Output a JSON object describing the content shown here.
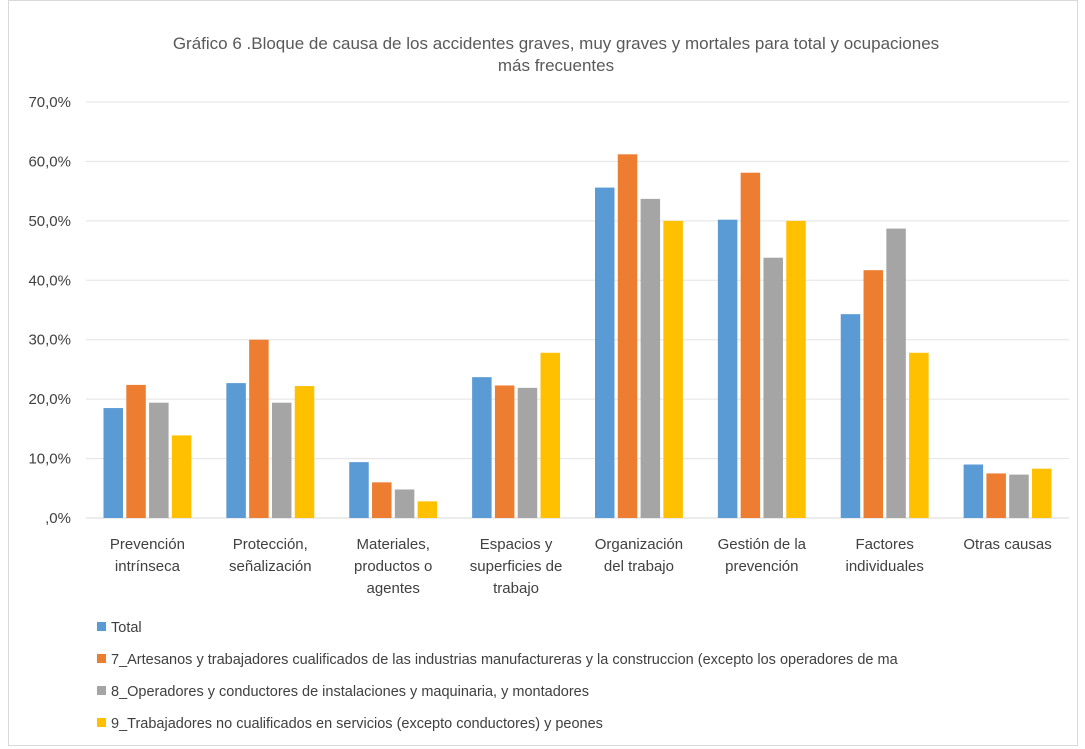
{
  "chart_data": {
    "type": "bar",
    "title_lines": [
      "Gráfico 6 .Bloque de causa de los accidentes graves, muy graves y mortales para total y ocupaciones",
      "más frecuentes"
    ],
    "categories": [
      [
        "Prevención",
        "intrínseca"
      ],
      [
        "Protección,",
        "señalización"
      ],
      [
        "Materiales,",
        "productos o",
        "agentes"
      ],
      [
        "Espacios y",
        "superficies de",
        "trabajo"
      ],
      [
        "Organización",
        "del trabajo"
      ],
      [
        "Gestión de la",
        "prevención"
      ],
      [
        "Factores",
        "individuales"
      ],
      [
        "Otras causas"
      ]
    ],
    "ylim": [
      0,
      70
    ],
    "yticks": [
      0,
      10,
      20,
      30,
      40,
      50,
      60,
      70
    ],
    "ytick_labels": [
      ",0%",
      "10,0%",
      "20,0%",
      "30,0%",
      "40,0%",
      "50,0%",
      "60,0%",
      "70,0%"
    ],
    "grid": true,
    "legend_position": "bottom",
    "series": [
      {
        "name": "Total",
        "color": "#5b9bd5",
        "values": [
          18.5,
          22.7,
          9.4,
          23.7,
          55.6,
          50.2,
          34.3,
          9.0
        ]
      },
      {
        "name": "7_Artesanos y trabajadores cualificados de las industrias manufactureras y la construccion (excepto los operadores de ma",
        "color": "#ed7d31",
        "values": [
          22.4,
          30.0,
          6.0,
          22.3,
          61.2,
          58.1,
          41.7,
          7.5
        ]
      },
      {
        "name": "8_Operadores  y conductores de instalaciones y maquinaria, y montadores",
        "color": "#a5a5a5",
        "values": [
          19.4,
          19.4,
          4.8,
          21.9,
          53.7,
          43.8,
          48.7,
          7.3
        ]
      },
      {
        "name": "9_Trabajadores no cualificados en servicios (excepto conductores) y peones",
        "color": "#ffc000",
        "values": [
          13.9,
          22.2,
          2.8,
          27.8,
          50.0,
          50.0,
          27.8,
          8.3
        ]
      }
    ]
  }
}
